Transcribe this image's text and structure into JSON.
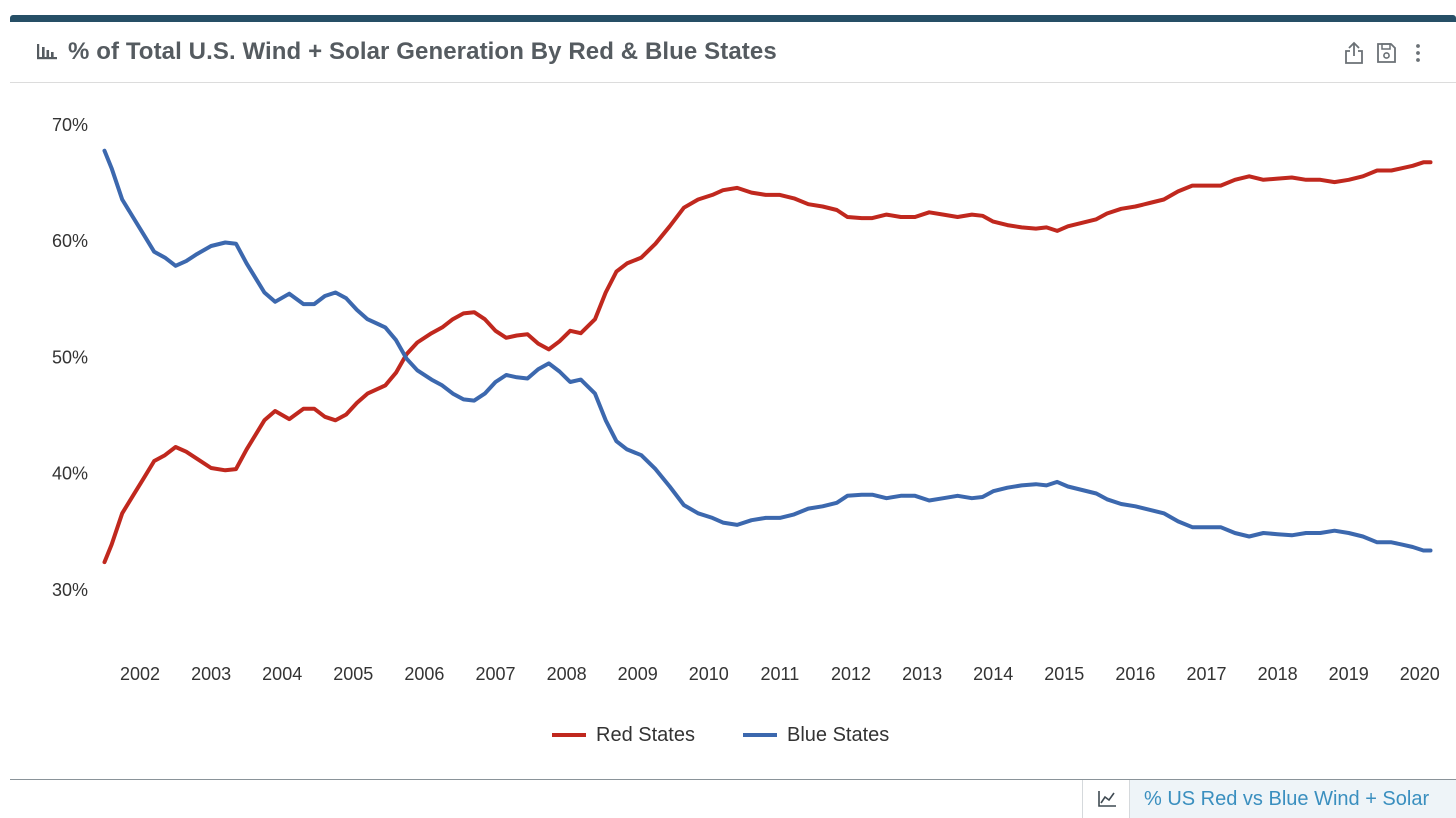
{
  "header": {
    "title": "% of Total U.S. Wind + Solar Generation By Red & Blue States",
    "title_icon": "bar-chart-icon",
    "actions": [
      {
        "icon": "share-icon"
      },
      {
        "icon": "save-icon"
      },
      {
        "icon": "more-vertical-icon"
      }
    ],
    "accent_color": "#264f66"
  },
  "footer": {
    "tab_icon": "line-chart-icon",
    "tab_label": "% US Red vs Blue Wind + Solar"
  },
  "chart_data": {
    "type": "line",
    "title": "% of Total U.S. Wind + Solar Generation By Red & Blue States",
    "xlabel": "",
    "ylabel": "",
    "ylim": [
      25,
      70
    ],
    "yticks": [
      "70%",
      "60%",
      "50%",
      "40%",
      "30%"
    ],
    "xticks": [
      "2002",
      "2003",
      "2004",
      "2005",
      "2006",
      "2007",
      "2008",
      "2009",
      "2010",
      "2011",
      "2012",
      "2013",
      "2014",
      "2015",
      "2016",
      "2017",
      "2018",
      "2019",
      "2020"
    ],
    "grid": false,
    "legend": "bottom-center",
    "series": [
      {
        "name": "Red States",
        "color": "#c0281e",
        "points": [
          [
            2001.5,
            32.3
          ],
          [
            2001.6,
            33.8
          ],
          [
            2001.75,
            36.5
          ],
          [
            2001.9,
            38.0
          ],
          [
            2002.05,
            39.5
          ],
          [
            2002.2,
            41.0
          ],
          [
            2002.35,
            41.5
          ],
          [
            2002.5,
            42.2
          ],
          [
            2002.65,
            41.8
          ],
          [
            2002.8,
            41.2
          ],
          [
            2003.0,
            40.4
          ],
          [
            2003.2,
            40.2
          ],
          [
            2003.35,
            40.3
          ],
          [
            2003.5,
            42.0
          ],
          [
            2003.75,
            44.5
          ],
          [
            2003.9,
            45.3
          ],
          [
            2004.1,
            44.6
          ],
          [
            2004.3,
            45.5
          ],
          [
            2004.45,
            45.5
          ],
          [
            2004.6,
            44.8
          ],
          [
            2004.75,
            44.5
          ],
          [
            2004.9,
            45.0
          ],
          [
            2005.05,
            46.0
          ],
          [
            2005.2,
            46.8
          ],
          [
            2005.45,
            47.5
          ],
          [
            2005.6,
            48.6
          ],
          [
            2005.75,
            50.2
          ],
          [
            2005.9,
            51.2
          ],
          [
            2006.1,
            52.0
          ],
          [
            2006.25,
            52.5
          ],
          [
            2006.4,
            53.2
          ],
          [
            2006.55,
            53.7
          ],
          [
            2006.7,
            53.8
          ],
          [
            2006.85,
            53.2
          ],
          [
            2007.0,
            52.2
          ],
          [
            2007.15,
            51.6
          ],
          [
            2007.3,
            51.8
          ],
          [
            2007.45,
            51.9
          ],
          [
            2007.6,
            51.1
          ],
          [
            2007.75,
            50.6
          ],
          [
            2007.9,
            51.3
          ],
          [
            2008.05,
            52.2
          ],
          [
            2008.2,
            52.0
          ],
          [
            2008.4,
            53.2
          ],
          [
            2008.55,
            55.5
          ],
          [
            2008.7,
            57.3
          ],
          [
            2008.85,
            58.0
          ],
          [
            2009.05,
            58.5
          ],
          [
            2009.25,
            59.7
          ],
          [
            2009.45,
            61.2
          ],
          [
            2009.65,
            62.8
          ],
          [
            2009.85,
            63.5
          ],
          [
            2010.05,
            63.9
          ],
          [
            2010.2,
            64.3
          ],
          [
            2010.4,
            64.5
          ],
          [
            2010.6,
            64.1
          ],
          [
            2010.8,
            63.9
          ],
          [
            2011.0,
            63.9
          ],
          [
            2011.2,
            63.6
          ],
          [
            2011.4,
            63.1
          ],
          [
            2011.6,
            62.9
          ],
          [
            2011.8,
            62.6
          ],
          [
            2011.95,
            62.0
          ],
          [
            2012.15,
            61.9
          ],
          [
            2012.3,
            61.9
          ],
          [
            2012.5,
            62.2
          ],
          [
            2012.7,
            62.0
          ],
          [
            2012.9,
            62.0
          ],
          [
            2013.1,
            62.4
          ],
          [
            2013.3,
            62.2
          ],
          [
            2013.5,
            62.0
          ],
          [
            2013.7,
            62.2
          ],
          [
            2013.85,
            62.1
          ],
          [
            2014.0,
            61.6
          ],
          [
            2014.2,
            61.3
          ],
          [
            2014.4,
            61.1
          ],
          [
            2014.6,
            61.0
          ],
          [
            2014.75,
            61.1
          ],
          [
            2014.9,
            60.8
          ],
          [
            2015.05,
            61.2
          ],
          [
            2015.25,
            61.5
          ],
          [
            2015.45,
            61.8
          ],
          [
            2015.6,
            62.3
          ],
          [
            2015.8,
            62.7
          ],
          [
            2016.0,
            62.9
          ],
          [
            2016.2,
            63.2
          ],
          [
            2016.4,
            63.5
          ],
          [
            2016.6,
            64.2
          ],
          [
            2016.8,
            64.7
          ],
          [
            2017.0,
            64.7
          ],
          [
            2017.2,
            64.7
          ],
          [
            2017.4,
            65.2
          ],
          [
            2017.6,
            65.5
          ],
          [
            2017.8,
            65.2
          ],
          [
            2018.0,
            65.3
          ],
          [
            2018.2,
            65.4
          ],
          [
            2018.4,
            65.2
          ],
          [
            2018.6,
            65.2
          ],
          [
            2018.8,
            65.0
          ],
          [
            2019.0,
            65.2
          ],
          [
            2019.2,
            65.5
          ],
          [
            2019.4,
            66.0
          ],
          [
            2019.6,
            66.0
          ],
          [
            2019.75,
            66.2
          ],
          [
            2019.9,
            66.4
          ],
          [
            2020.05,
            66.7
          ],
          [
            2020.15,
            66.7
          ]
        ]
      },
      {
        "name": "Blue States",
        "color": "#3c68ae",
        "points": [
          [
            2001.5,
            67.7
          ],
          [
            2001.6,
            66.2
          ],
          [
            2001.75,
            63.5
          ],
          [
            2001.9,
            62.0
          ],
          [
            2002.05,
            60.5
          ],
          [
            2002.2,
            59.0
          ],
          [
            2002.35,
            58.5
          ],
          [
            2002.5,
            57.8
          ],
          [
            2002.65,
            58.2
          ],
          [
            2002.8,
            58.8
          ],
          [
            2003.0,
            59.5
          ],
          [
            2003.2,
            59.8
          ],
          [
            2003.35,
            59.7
          ],
          [
            2003.5,
            58.0
          ],
          [
            2003.75,
            55.5
          ],
          [
            2003.9,
            54.7
          ],
          [
            2004.1,
            55.4
          ],
          [
            2004.3,
            54.5
          ],
          [
            2004.45,
            54.5
          ],
          [
            2004.6,
            55.2
          ],
          [
            2004.75,
            55.5
          ],
          [
            2004.9,
            55.0
          ],
          [
            2005.05,
            54.0
          ],
          [
            2005.2,
            53.2
          ],
          [
            2005.45,
            52.5
          ],
          [
            2005.6,
            51.4
          ],
          [
            2005.75,
            49.8
          ],
          [
            2005.9,
            48.8
          ],
          [
            2006.1,
            48.0
          ],
          [
            2006.25,
            47.5
          ],
          [
            2006.4,
            46.8
          ],
          [
            2006.55,
            46.3
          ],
          [
            2006.7,
            46.2
          ],
          [
            2006.85,
            46.8
          ],
          [
            2007.0,
            47.8
          ],
          [
            2007.15,
            48.4
          ],
          [
            2007.3,
            48.2
          ],
          [
            2007.45,
            48.1
          ],
          [
            2007.6,
            48.9
          ],
          [
            2007.75,
            49.4
          ],
          [
            2007.9,
            48.7
          ],
          [
            2008.05,
            47.8
          ],
          [
            2008.2,
            48.0
          ],
          [
            2008.4,
            46.8
          ],
          [
            2008.55,
            44.5
          ],
          [
            2008.7,
            42.7
          ],
          [
            2008.85,
            42.0
          ],
          [
            2009.05,
            41.5
          ],
          [
            2009.25,
            40.3
          ],
          [
            2009.45,
            38.8
          ],
          [
            2009.65,
            37.2
          ],
          [
            2009.85,
            36.5
          ],
          [
            2010.05,
            36.1
          ],
          [
            2010.2,
            35.7
          ],
          [
            2010.4,
            35.5
          ],
          [
            2010.6,
            35.9
          ],
          [
            2010.8,
            36.1
          ],
          [
            2011.0,
            36.1
          ],
          [
            2011.2,
            36.4
          ],
          [
            2011.4,
            36.9
          ],
          [
            2011.6,
            37.1
          ],
          [
            2011.8,
            37.4
          ],
          [
            2011.95,
            38.0
          ],
          [
            2012.15,
            38.1
          ],
          [
            2012.3,
            38.1
          ],
          [
            2012.5,
            37.8
          ],
          [
            2012.7,
            38.0
          ],
          [
            2012.9,
            38.0
          ],
          [
            2013.1,
            37.6
          ],
          [
            2013.3,
            37.8
          ],
          [
            2013.5,
            38.0
          ],
          [
            2013.7,
            37.8
          ],
          [
            2013.85,
            37.9
          ],
          [
            2014.0,
            38.4
          ],
          [
            2014.2,
            38.7
          ],
          [
            2014.4,
            38.9
          ],
          [
            2014.6,
            39.0
          ],
          [
            2014.75,
            38.9
          ],
          [
            2014.9,
            39.2
          ],
          [
            2015.05,
            38.8
          ],
          [
            2015.25,
            38.5
          ],
          [
            2015.45,
            38.2
          ],
          [
            2015.6,
            37.7
          ],
          [
            2015.8,
            37.3
          ],
          [
            2016.0,
            37.1
          ],
          [
            2016.2,
            36.8
          ],
          [
            2016.4,
            36.5
          ],
          [
            2016.6,
            35.8
          ],
          [
            2016.8,
            35.3
          ],
          [
            2017.0,
            35.3
          ],
          [
            2017.2,
            35.3
          ],
          [
            2017.4,
            34.8
          ],
          [
            2017.6,
            34.5
          ],
          [
            2017.8,
            34.8
          ],
          [
            2018.0,
            34.7
          ],
          [
            2018.2,
            34.6
          ],
          [
            2018.4,
            34.8
          ],
          [
            2018.6,
            34.8
          ],
          [
            2018.8,
            35.0
          ],
          [
            2019.0,
            34.8
          ],
          [
            2019.2,
            34.5
          ],
          [
            2019.4,
            34.0
          ],
          [
            2019.6,
            34.0
          ],
          [
            2019.75,
            33.8
          ],
          [
            2019.9,
            33.6
          ],
          [
            2020.05,
            33.3
          ],
          [
            2020.15,
            33.3
          ]
        ]
      }
    ]
  }
}
